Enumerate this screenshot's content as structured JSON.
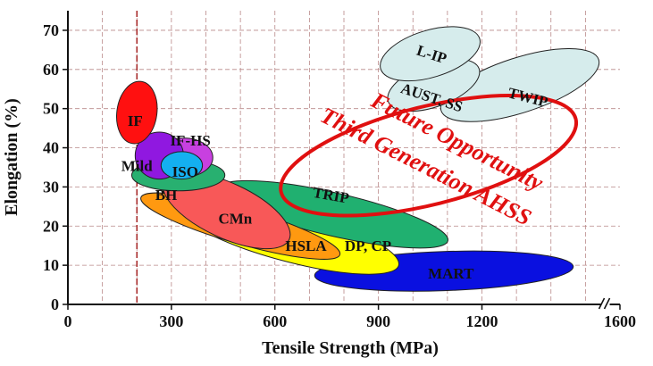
{
  "chart_data": {
    "type": "scatter",
    "title": "",
    "xlabel": "Tensile Strength (MPa)",
    "ylabel": "Elongation (%)",
    "xlim": [
      0,
      1600
    ],
    "ylim": [
      0,
      75
    ],
    "grid": true,
    "x_ticks": [
      0,
      300,
      600,
      900,
      1200,
      1600
    ],
    "x_tick_labels": [
      "0",
      "300",
      "600",
      "900",
      "1200",
      "1600"
    ],
    "y_ticks": [
      0,
      10,
      20,
      30,
      40,
      50,
      60,
      70
    ],
    "y_tick_labels": [
      "0",
      "10",
      "20",
      "30",
      "40",
      "50",
      "60",
      "70"
    ],
    "axis_break": true,
    "marker_line_x": 200,
    "regions": [
      {
        "name": "MART",
        "label": "MART",
        "color": "#0a10e0",
        "cx": 1090,
        "cy": 8.5,
        "rx": 375,
        "ry": 5.0,
        "angle": -2,
        "label_x": 1110,
        "label_y": 8
      },
      {
        "name": "DP, CP",
        "label": "DP, CP",
        "color": "#ffff00",
        "cx": 640,
        "cy": 17.5,
        "rx": 330,
        "ry": 6.5,
        "angle": 15,
        "label_x": 870,
        "label_y": 15
      },
      {
        "name": "TRIP",
        "label": "TRIP",
        "color": "#20b070",
        "cx": 770,
        "cy": 23,
        "rx": 340,
        "ry": 5.5,
        "angle": 13,
        "label_x": 760,
        "label_y": 28
      },
      {
        "name": "HSLA",
        "label": "HSLA",
        "color": "#ff9910",
        "cx": 500,
        "cy": 20,
        "rx": 300,
        "ry": 4.5,
        "angle": 16,
        "label_x": 690,
        "label_y": 15
      },
      {
        "name": "CMn",
        "label": "CMn",
        "color": "#f85858",
        "cx": 460,
        "cy": 24,
        "rx": 200,
        "ry": 7.0,
        "angle": 25,
        "label_x": 485,
        "label_y": 22
      },
      {
        "name": "BH",
        "label": "BH",
        "color": "#28b070",
        "cx": 320,
        "cy": 33,
        "rx": 135,
        "ry": 4.0,
        "angle": 0,
        "label_x": 285,
        "label_y": 28
      },
      {
        "name": "IF-HS",
        "label": "IF-HS",
        "color": "#c840e0",
        "cx": 335,
        "cy": 37.5,
        "rx": 85,
        "ry": 5.0,
        "angle": 0,
        "label_x": 355,
        "label_y": 42
      },
      {
        "name": "Mild",
        "label": "Mild",
        "color": "#9018e0",
        "cx": 265,
        "cy": 38,
        "rx": 70,
        "ry": 6.0,
        "angle": 0,
        "label_x": 200,
        "label_y": 35.5
      },
      {
        "name": "ISO",
        "label": "ISO",
        "color": "#14b0f0",
        "cx": 330,
        "cy": 35.5,
        "rx": 60,
        "ry": 3.5,
        "angle": 0,
        "label_x": 340,
        "label_y": 34
      },
      {
        "name": "IF",
        "label": "IF",
        "color": "#ff1010",
        "cx": 200,
        "cy": 49,
        "rx": 58,
        "ry": 8.0,
        "angle": 8,
        "label_x": 195,
        "label_y": 47
      },
      {
        "name": "TWIP",
        "label": "TWIP",
        "color": "#d6ecec",
        "cx": 1310,
        "cy": 56,
        "rx": 240,
        "ry": 7.0,
        "angle": -18,
        "label_x": 1330,
        "label_y": 53
      },
      {
        "name": "AUST. SS",
        "label": "AUST. SS",
        "color": "#d6ecec",
        "cx": 1060,
        "cy": 56,
        "rx": 140,
        "ry": 5.5,
        "angle": -20,
        "label_x": 1050,
        "label_y": 53
      },
      {
        "name": "L-IP",
        "label": "L-IP",
        "color": "#d6ecec",
        "cx": 1050,
        "cy": 64,
        "rx": 150,
        "ry": 6.0,
        "angle": -17,
        "label_x": 1050,
        "label_y": 64
      }
    ],
    "annotation": {
      "lines": [
        "Future Opportunity",
        "Third Generation AHSS"
      ],
      "color": "#e01010",
      "ellipse": {
        "cx": 1045,
        "cy": 38,
        "rx": 440,
        "ry": 12.5,
        "angle": -14
      }
    }
  }
}
